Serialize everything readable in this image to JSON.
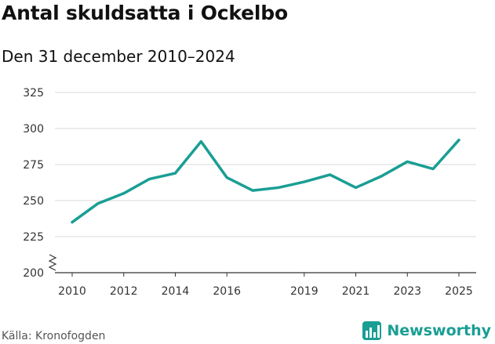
{
  "title": "Antal skuldsatta i Ockelbo",
  "subtitle": "Den 31 december 2010–2024",
  "source": "Källa: Kronofogden",
  "brand": {
    "name": "Newsworthy",
    "color": "#1a9e94",
    "icon": "bar-chart-logo-icon"
  },
  "colors": {
    "line": "#1a9e94",
    "grid": "#d9d9d9",
    "axis": "#333333"
  },
  "chart_data": {
    "type": "line",
    "title": "Antal skuldsatta i Ockelbo",
    "subtitle": "Den 31 december 2010–2024",
    "xlabel": "",
    "ylabel": "",
    "x": [
      2010,
      2011,
      2012,
      2013,
      2014,
      2015,
      2016,
      2017,
      2018,
      2019,
      2020,
      2021,
      2022,
      2023,
      2024,
      2025
    ],
    "series": [
      {
        "values": [
          235,
          248,
          255,
          265,
          269,
          291,
          266,
          257,
          259,
          263,
          268,
          259,
          267,
          277,
          272,
          292
        ]
      }
    ],
    "ylim": [
      200,
      325
    ],
    "yticks": [
      200,
      225,
      250,
      275,
      300,
      325
    ],
    "xtick_labels": [
      "2010",
      "2012",
      "2014",
      "2016",
      "2019",
      "2021",
      "2023",
      "2025"
    ],
    "xtick_values": [
      2010,
      2012,
      2014,
      2016,
      2019,
      2021,
      2023,
      2025
    ],
    "y_axis_break": true,
    "grid": true
  }
}
